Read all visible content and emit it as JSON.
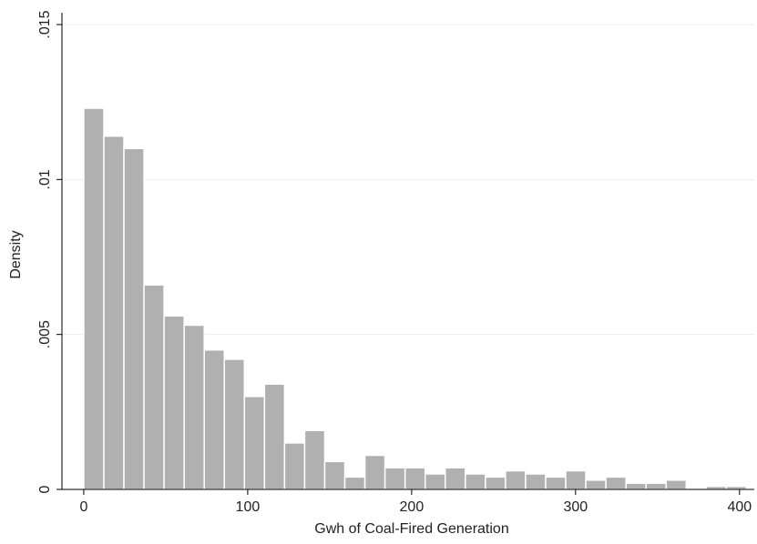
{
  "chart_data": {
    "type": "histogram",
    "xlabel": "Gwh of Coal-Fired Generation",
    "ylabel": "Density",
    "bins": [
      0,
      12.25,
      24.5,
      36.75,
      49,
      61.25,
      73.5,
      85.75,
      98,
      110.25,
      122.5,
      134.75,
      147,
      159.25,
      171.5,
      183.75,
      196,
      208.25,
      220.5,
      232.75,
      245,
      257.25,
      269.5,
      281.75,
      294,
      306.25,
      318.5,
      330.75,
      343,
      355.25,
      367.5,
      379.75,
      392,
      404.25
    ],
    "values": [
      0.0123,
      0.0114,
      0.011,
      0.0066,
      0.0056,
      0.0053,
      0.0045,
      0.0042,
      0.003,
      0.0034,
      0.0015,
      0.0019,
      0.0009,
      0.0004,
      0.0011,
      0.0007,
      0.0007,
      0.0005,
      0.0007,
      0.0005,
      0.0004,
      0.0006,
      0.0005,
      0.0004,
      0.0006,
      0.0003,
      0.0004,
      0.0002,
      0.0002,
      0.0003,
      0,
      0.0001,
      0.0001
    ],
    "color": "#b0b0b0",
    "xlim": [
      -13.3,
      409
    ],
    "xticks": [
      0,
      100,
      200,
      300,
      400
    ],
    "ylim": [
      0,
      0.015
    ],
    "yticks": [
      0,
      {
        "value": 0.005,
        "label": ".005"
      },
      {
        "value": 0.01,
        "label": ".01"
      },
      {
        "value": 0.015,
        "label": ".015"
      }
    ],
    "grid": true
  }
}
